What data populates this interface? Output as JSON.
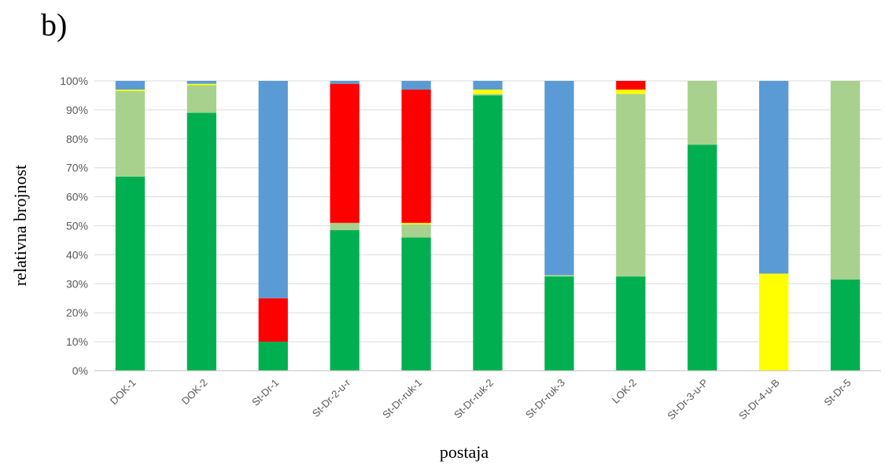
{
  "panel_label": "b)",
  "chart_data": {
    "type": "bar",
    "stacked": true,
    "xlabel": "postaja",
    "ylabel": "relativna brojnost",
    "ylim": [
      0,
      100
    ],
    "y_tick_suffix": "%",
    "y_ticks": [
      0,
      10,
      20,
      30,
      40,
      50,
      60,
      70,
      80,
      90,
      100
    ],
    "grid": true,
    "legend": "none",
    "categories": [
      "DOK-1",
      "DOK-2",
      "St-Dr-1",
      "St-Dr-2-u-r",
      "St-Dr-ruk-1",
      "St-Dr-ruk-2",
      "St-Dr-ruk-3",
      "LOK-2",
      "St-Dr-3-u-P",
      "St-Dr-4-u-B",
      "St-Dr-5"
    ],
    "series": [
      {
        "color": "#00b050",
        "values": [
          67,
          89,
          10,
          48.5,
          46,
          95,
          32.5,
          32.5,
          78,
          0,
          31.5
        ]
      },
      {
        "color": "#a9d18e",
        "values": [
          29.5,
          9.5,
          0,
          2.5,
          4.5,
          0.5,
          0.5,
          63,
          22,
          0,
          68.5
        ]
      },
      {
        "color": "#ffff00",
        "values": [
          0.5,
          0.5,
          0,
          0,
          0.5,
          1.5,
          0,
          1.5,
          0,
          33.5,
          0
        ]
      },
      {
        "color": "#ff0000",
        "values": [
          0,
          0,
          15,
          48,
          46,
          0,
          0,
          3,
          0,
          0,
          0
        ]
      },
      {
        "color": "#5b9bd5",
        "values": [
          3,
          1,
          75,
          1,
          3,
          3,
          67,
          0,
          0,
          66.5,
          0
        ]
      }
    ]
  }
}
